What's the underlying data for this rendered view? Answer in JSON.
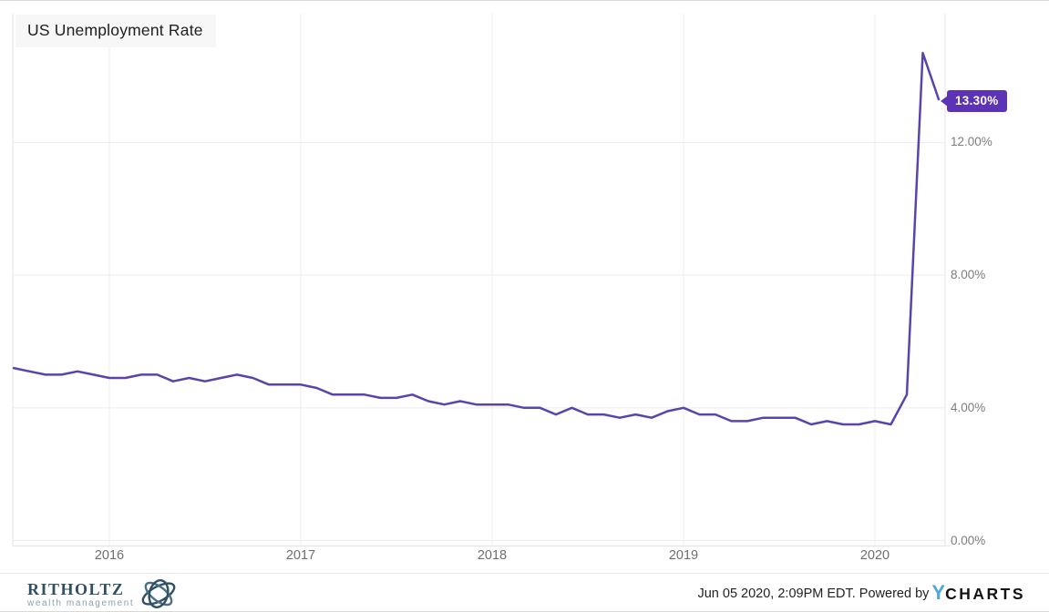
{
  "title": "US Unemployment Rate",
  "colors": {
    "line": "#5a44ab",
    "badge": "#5c33b6",
    "grid": "#ececec",
    "plot_border": "#e3e3e3",
    "brand_blue": "#2f4f63",
    "brand_light_blue": "#4a7089",
    "ycharts_blue": "#4fa8d8"
  },
  "chart_data": {
    "type": "line",
    "title": "US Unemployment Rate",
    "x_start": "2015-07",
    "frequency": "monthly",
    "values": [
      5.2,
      5.1,
      5.0,
      5.0,
      5.1,
      5.0,
      4.9,
      4.9,
      5.0,
      5.0,
      4.8,
      4.9,
      4.8,
      4.9,
      5.0,
      4.9,
      4.7,
      4.7,
      4.7,
      4.6,
      4.4,
      4.4,
      4.4,
      4.3,
      4.3,
      4.4,
      4.2,
      4.1,
      4.2,
      4.1,
      4.1,
      4.1,
      4.0,
      4.0,
      3.8,
      4.0,
      3.8,
      3.8,
      3.7,
      3.8,
      3.7,
      3.9,
      4.0,
      3.8,
      3.8,
      3.6,
      3.6,
      3.7,
      3.7,
      3.7,
      3.5,
      3.6,
      3.5,
      3.5,
      3.6,
      3.5,
      4.4,
      14.7,
      13.3
    ],
    "last_value_label": "13.30%",
    "x_ticks": [
      "2016",
      "2017",
      "2018",
      "2019",
      "2020"
    ],
    "y_ticks": [
      "0.00%",
      "4.00%",
      "8.00%",
      "12.00%"
    ],
    "y_tick_values": [
      0,
      4,
      8,
      12
    ],
    "ylim": [
      0,
      16
    ],
    "grid": true,
    "legend": "none"
  },
  "footer": {
    "brand_name": "RITHOLTZ",
    "brand_tagline": "wealth management",
    "timestamp": "Jun 05 2020, 2:09PM EDT. Powered by",
    "ycharts_y": "Y",
    "ycharts_charts": "CHARTS"
  }
}
